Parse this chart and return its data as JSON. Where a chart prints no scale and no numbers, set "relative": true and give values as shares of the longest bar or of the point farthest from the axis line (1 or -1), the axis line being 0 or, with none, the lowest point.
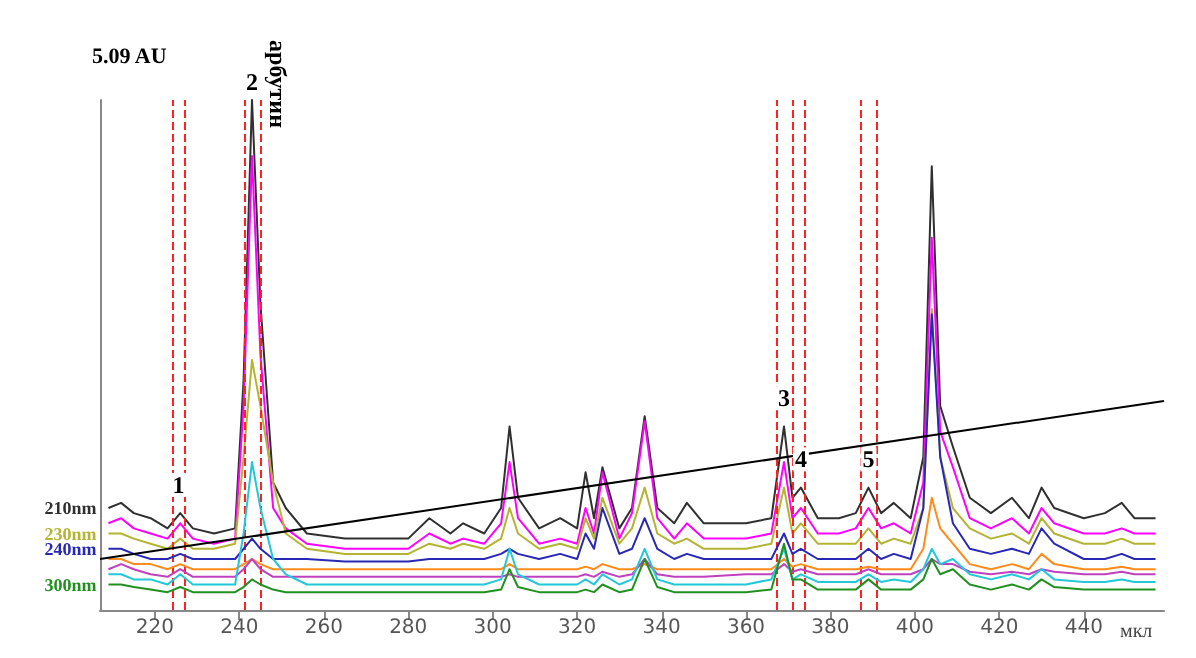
{
  "chart_data": {
    "type": "line",
    "relative": true,
    "ylabel": "5.09 AU",
    "xlabel": "мкл",
    "x": [
      209,
      212,
      215,
      219,
      223,
      226,
      229,
      234,
      239,
      241,
      243,
      245,
      248,
      251,
      256,
      265,
      280,
      285,
      290,
      293,
      298,
      302,
      304,
      306,
      311,
      316,
      320,
      322,
      324,
      326,
      330,
      333,
      336,
      339,
      343,
      346,
      350,
      360,
      366,
      369,
      371,
      373,
      377,
      382,
      386,
      389,
      392,
      395,
      399,
      402,
      404,
      406,
      409,
      413,
      418,
      423,
      427,
      430,
      433,
      440,
      445,
      449,
      452,
      457
    ],
    "xlim": [
      207,
      459
    ],
    "xticks": [
      220,
      240,
      260,
      280,
      300,
      320,
      340,
      360,
      380,
      400,
      420,
      440
    ],
    "series": [
      {
        "name": "210nm",
        "color": "#303030",
        "values": [
          0.2,
          0.21,
          0.19,
          0.18,
          0.16,
          0.19,
          0.16,
          0.15,
          0.16,
          0.45,
          1,
          0.6,
          0.25,
          0.2,
          0.15,
          0.14,
          0.14,
          0.18,
          0.15,
          0.17,
          0.15,
          0.2,
          0.36,
          0.22,
          0.16,
          0.18,
          0.16,
          0.27,
          0.18,
          0.28,
          0.16,
          0.2,
          0.38,
          0.2,
          0.17,
          0.21,
          0.17,
          0.17,
          0.18,
          0.36,
          0.22,
          0.24,
          0.18,
          0.18,
          0.19,
          0.24,
          0.19,
          0.21,
          0.18,
          0.3,
          0.87,
          0.4,
          0.32,
          0.22,
          0.19,
          0.22,
          0.18,
          0.24,
          0.2,
          0.18,
          0.19,
          0.21,
          0.18,
          0.18
        ]
      },
      {
        "color": "#ff00ff",
        "values": [
          0.17,
          0.18,
          0.16,
          0.15,
          0.14,
          0.17,
          0.14,
          0.13,
          0.14,
          0.4,
          0.89,
          0.5,
          0.2,
          0.16,
          0.13,
          0.12,
          0.12,
          0.15,
          0.13,
          0.14,
          0.13,
          0.17,
          0.29,
          0.18,
          0.13,
          0.14,
          0.13,
          0.2,
          0.15,
          0.27,
          0.14,
          0.19,
          0.37,
          0.18,
          0.14,
          0.17,
          0.14,
          0.14,
          0.15,
          0.29,
          0.18,
          0.2,
          0.15,
          0.15,
          0.16,
          0.2,
          0.16,
          0.17,
          0.15,
          0.25,
          0.73,
          0.35,
          0.28,
          0.18,
          0.16,
          0.18,
          0.15,
          0.2,
          0.17,
          0.15,
          0.15,
          0.16,
          0.15,
          0.15
        ]
      },
      {
        "name": "230nm",
        "color": "#b4b432",
        "values": [
          0.15,
          0.15,
          0.14,
          0.13,
          0.12,
          0.14,
          0.12,
          0.12,
          0.13,
          0.3,
          0.49,
          0.4,
          0.25,
          0.15,
          0.12,
          0.11,
          0.11,
          0.13,
          0.12,
          0.13,
          0.12,
          0.14,
          0.2,
          0.15,
          0.12,
          0.13,
          0.12,
          0.18,
          0.14,
          0.22,
          0.13,
          0.16,
          0.24,
          0.15,
          0.13,
          0.14,
          0.12,
          0.12,
          0.13,
          0.24,
          0.15,
          0.17,
          0.13,
          0.13,
          0.13,
          0.16,
          0.13,
          0.14,
          0.13,
          0.2,
          0.59,
          0.3,
          0.2,
          0.16,
          0.14,
          0.15,
          0.13,
          0.18,
          0.15,
          0.13,
          0.13,
          0.14,
          0.13,
          0.13
        ]
      },
      {
        "name": "240nm",
        "color": "#2828b4",
        "values": [
          0.12,
          0.12,
          0.11,
          0.1,
          0.1,
          0.11,
          0.1,
          0.1,
          0.1,
          0.12,
          0.14,
          0.12,
          0.1,
          0.1,
          0.1,
          0.095,
          0.095,
          0.1,
          0.1,
          0.1,
          0.1,
          0.11,
          0.12,
          0.11,
          0.1,
          0.11,
          0.1,
          0.15,
          0.12,
          0.2,
          0.11,
          0.12,
          0.18,
          0.12,
          0.1,
          0.11,
          0.1,
          0.1,
          0.1,
          0.15,
          0.11,
          0.12,
          0.1,
          0.1,
          0.1,
          0.12,
          0.1,
          0.11,
          0.1,
          0.2,
          0.58,
          0.3,
          0.17,
          0.12,
          0.11,
          0.12,
          0.11,
          0.16,
          0.13,
          0.1,
          0.1,
          0.11,
          0.1,
          0.1
        ]
      },
      {
        "color": "#ff8c1a",
        "values": [
          0.1,
          0.1,
          0.09,
          0.09,
          0.08,
          0.09,
          0.08,
          0.08,
          0.08,
          0.09,
          0.1,
          0.09,
          0.08,
          0.08,
          0.08,
          0.08,
          0.08,
          0.08,
          0.08,
          0.08,
          0.08,
          0.08,
          0.09,
          0.08,
          0.08,
          0.08,
          0.08,
          0.085,
          0.08,
          0.09,
          0.08,
          0.08,
          0.09,
          0.08,
          0.08,
          0.08,
          0.08,
          0.08,
          0.08,
          0.1,
          0.085,
          0.09,
          0.08,
          0.08,
          0.08,
          0.085,
          0.08,
          0.08,
          0.08,
          0.12,
          0.22,
          0.16,
          0.13,
          0.09,
          0.08,
          0.09,
          0.08,
          0.11,
          0.09,
          0.08,
          0.08,
          0.085,
          0.08,
          0.08
        ]
      },
      {
        "color": "#c040c0",
        "values": [
          0.08,
          0.09,
          0.08,
          0.07,
          0.065,
          0.08,
          0.065,
          0.065,
          0.065,
          0.08,
          0.1,
          0.08,
          0.065,
          0.065,
          0.065,
          0.065,
          0.065,
          0.065,
          0.065,
          0.065,
          0.065,
          0.065,
          0.07,
          0.065,
          0.065,
          0.065,
          0.065,
          0.07,
          0.065,
          0.075,
          0.065,
          0.07,
          0.1,
          0.07,
          0.065,
          0.065,
          0.065,
          0.07,
          0.07,
          0.09,
          0.075,
          0.08,
          0.07,
          0.07,
          0.07,
          0.08,
          0.07,
          0.07,
          0.07,
          0.08,
          0.1,
          0.09,
          0.09,
          0.075,
          0.07,
          0.075,
          0.07,
          0.08,
          0.075,
          0.07,
          0.07,
          0.075,
          0.07,
          0.07
        ]
      },
      {
        "color": "#20c8d8",
        "values": [
          0.07,
          0.07,
          0.06,
          0.06,
          0.05,
          0.07,
          0.05,
          0.05,
          0.05,
          0.15,
          0.29,
          0.2,
          0.1,
          0.07,
          0.05,
          0.05,
          0.05,
          0.05,
          0.05,
          0.05,
          0.05,
          0.06,
          0.12,
          0.07,
          0.05,
          0.05,
          0.05,
          0.06,
          0.05,
          0.07,
          0.05,
          0.06,
          0.12,
          0.06,
          0.05,
          0.05,
          0.05,
          0.05,
          0.06,
          0.12,
          0.06,
          0.07,
          0.055,
          0.055,
          0.055,
          0.07,
          0.055,
          0.06,
          0.055,
          0.08,
          0.12,
          0.09,
          0.1,
          0.07,
          0.06,
          0.07,
          0.06,
          0.08,
          0.06,
          0.055,
          0.055,
          0.06,
          0.055,
          0.055
        ]
      },
      {
        "name": "300nm",
        "color": "#209020",
        "values": [
          0.05,
          0.05,
          0.045,
          0.04,
          0.035,
          0.045,
          0.035,
          0.035,
          0.035,
          0.045,
          0.06,
          0.05,
          0.04,
          0.035,
          0.035,
          0.035,
          0.035,
          0.035,
          0.035,
          0.035,
          0.035,
          0.04,
          0.08,
          0.045,
          0.035,
          0.035,
          0.035,
          0.04,
          0.035,
          0.05,
          0.035,
          0.04,
          0.1,
          0.045,
          0.035,
          0.035,
          0.035,
          0.035,
          0.04,
          0.13,
          0.06,
          0.06,
          0.04,
          0.04,
          0.04,
          0.06,
          0.04,
          0.04,
          0.04,
          0.06,
          0.1,
          0.07,
          0.08,
          0.05,
          0.04,
          0.05,
          0.04,
          0.06,
          0.045,
          0.04,
          0.04,
          0.04,
          0.04,
          0.04
        ]
      },
      {
        "type": "line",
        "color": "#000000",
        "x": [
          207,
          459
        ],
        "values": [
          0.1,
          0.41
        ]
      }
    ],
    "ref_lines": [
      {
        "axis": "x",
        "value": 224,
        "color": "#ff2020",
        "line_style": "dashed"
      },
      {
        "axis": "x",
        "value": 227,
        "color": "#ff2020",
        "line_style": "dashed"
      },
      {
        "axis": "x",
        "value": 241,
        "color": "#ff2020",
        "line_style": "dashed"
      },
      {
        "axis": "x",
        "value": 245,
        "color": "#ff2020",
        "line_style": "dashed"
      },
      {
        "axis": "x",
        "value": 367,
        "color": "#ff2020",
        "line_style": "dashed"
      },
      {
        "axis": "x",
        "value": 371,
        "color": "#ff2020",
        "line_style": "dashed"
      },
      {
        "axis": "x",
        "value": 374,
        "color": "#ff2020",
        "line_style": "dashed"
      },
      {
        "axis": "x",
        "value": 387,
        "color": "#ff2020",
        "line_style": "dashed"
      },
      {
        "axis": "x",
        "value": 391,
        "color": "#ff2020",
        "line_style": "dashed"
      }
    ],
    "annotations": [
      {
        "text": "1",
        "x": 225.6,
        "y": 0.21
      },
      {
        "text": "2",
        "x": 243,
        "y": 1
      },
      {
        "text": "арбутин",
        "x": 243,
        "y": 1
      },
      {
        "text": "3",
        "x": 369,
        "y": 0.38
      },
      {
        "text": "4",
        "x": 373,
        "y": 0.26
      },
      {
        "text": "5",
        "x": 389,
        "y": 0.26
      }
    ]
  }
}
